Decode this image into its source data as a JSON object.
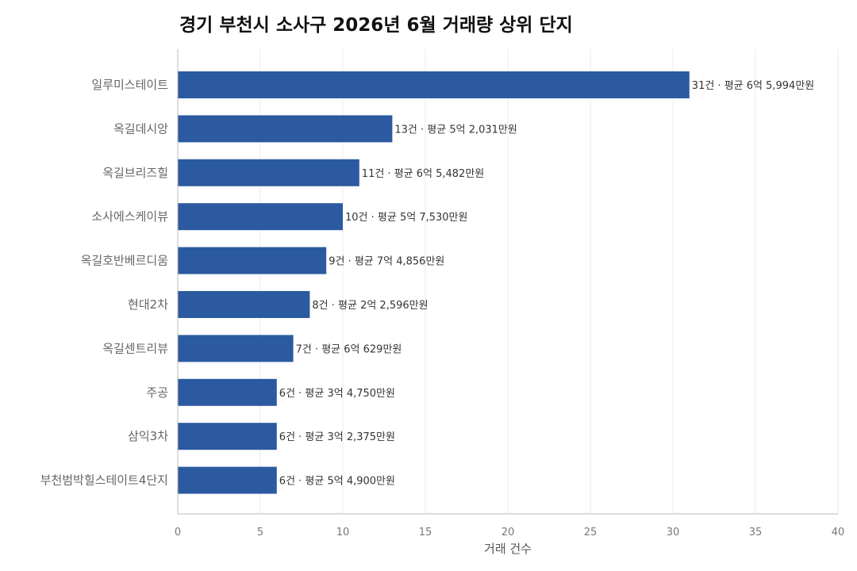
{
  "chart_data": {
    "type": "bar",
    "orientation": "horizontal",
    "title": "경기 부천시 소사구 2026년 6월 거래량 상위 단지",
    "xlabel": "거래 건수",
    "ylabel": "",
    "xlim": [
      0,
      40
    ],
    "xticks": [
      "0",
      "5",
      "10",
      "15",
      "20",
      "25",
      "30",
      "35",
      "40"
    ],
    "grid": "vertical",
    "bar_color": "#2b5aa0",
    "categories": [
      "일루미스테이트",
      "옥길데시앙",
      "옥길브리즈힐",
      "소사에스케이뷰",
      "옥길호반베르디움",
      "현대2차",
      "옥길센트리뷰",
      "주공",
      "삼익3차",
      "부천범박힐스테이트4단지"
    ],
    "values": [
      31,
      13,
      11,
      10,
      9,
      8,
      7,
      6,
      6,
      6
    ],
    "data_labels": [
      "31건 · 평균 6억 5,994만원",
      "13건 · 평균 5억 2,031만원",
      "11건 · 평균 6억 5,482만원",
      "10건 · 평균 5억 7,530만원",
      "9건 · 평균 7억 4,856만원",
      "8건 · 평균 2억 2,596만원",
      "7건 · 평균 6억 629만원",
      "6건 · 평균 3억 4,750만원",
      "6건 · 평균 3억 2,375만원",
      "6건 · 평균 5억 4,900만원"
    ]
  }
}
